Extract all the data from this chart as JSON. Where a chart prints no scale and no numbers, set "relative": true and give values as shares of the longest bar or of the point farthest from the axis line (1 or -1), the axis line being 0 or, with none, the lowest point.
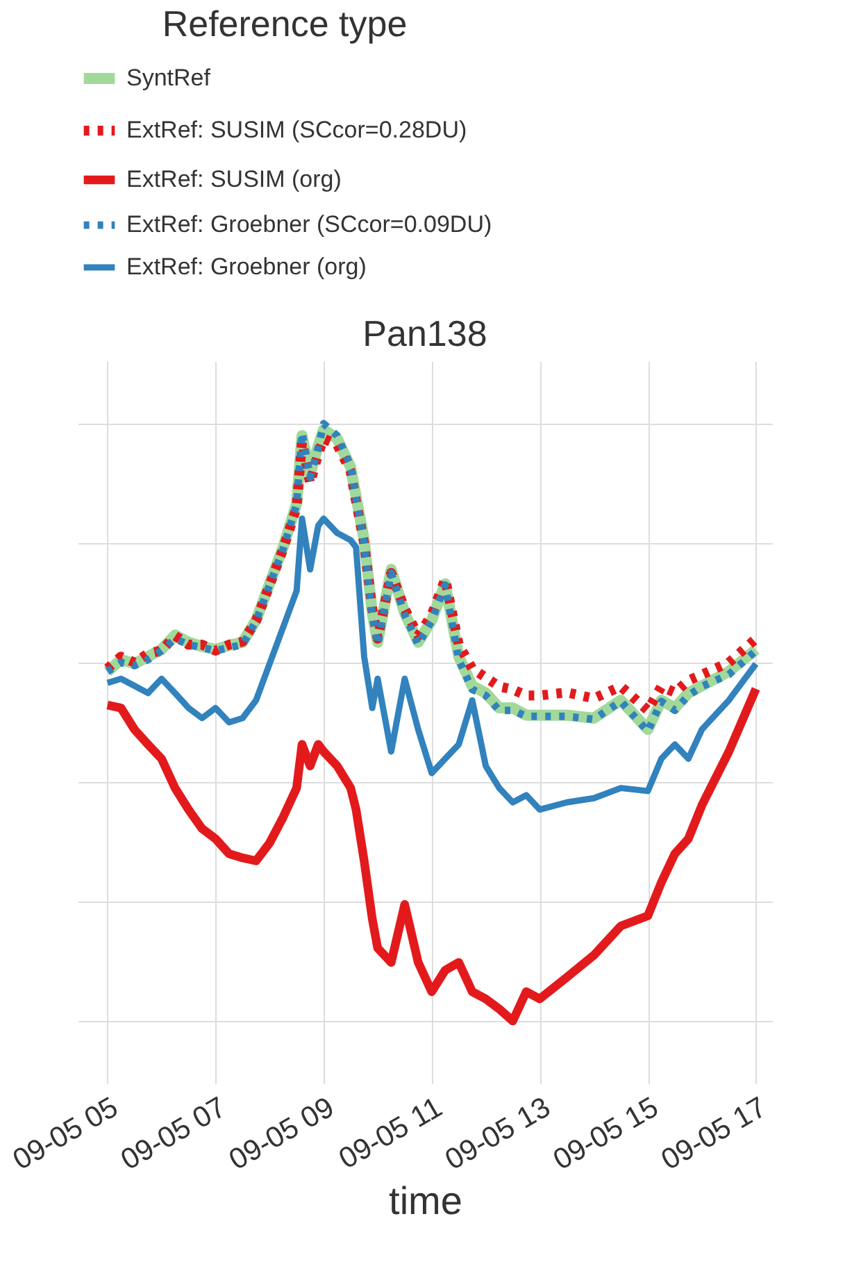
{
  "chart_data": {
    "type": "line",
    "title": "Pan138",
    "xlabel": "time",
    "legend_title": "Reference type",
    "legend": "top",
    "grid": true,
    "relative": true,
    "x": [
      "--09-05T05:00",
      "--09-05T05:15",
      "--09-05T05:30",
      "--09-05T05:45",
      "--09-05T06:00",
      "--09-05T06:15",
      "--09-05T06:30",
      "--09-05T06:45",
      "--09-05T07:00",
      "--09-05T07:15",
      "--09-05T07:30",
      "--09-05T07:45",
      "--09-05T08:00",
      "--09-05T08:15",
      "--09-05T08:30",
      "--09-05T08:36",
      "--09-05T08:45",
      "--09-05T08:54",
      "--09-05T09:00",
      "--09-05T09:15",
      "--09-05T09:30",
      "--09-05T09:36",
      "--09-05T09:45",
      "--09-05T09:54",
      "--09-05T10:00",
      "--09-05T10:15",
      "--09-05T10:30",
      "--09-05T10:45",
      "--09-05T11:00",
      "--09-05T11:15",
      "--09-05T11:30",
      "--09-05T11:45",
      "--09-05T12:00",
      "--09-05T12:15",
      "--09-05T12:30",
      "--09-05T12:45",
      "--09-05T13:00",
      "--09-05T13:30",
      "--09-05T14:00",
      "--09-05T14:30",
      "--09-05T15:00",
      "--09-05T15:15",
      "--09-05T15:30",
      "--09-05T15:45",
      "--09-05T16:00",
      "--09-05T16:30",
      "--09-05T17:00"
    ],
    "xlim": [
      "--09-05T04:27",
      "--09-05T17:18"
    ],
    "xticks": [
      {
        "value": "--09-05T05:00",
        "label": "09-05 05"
      },
      {
        "value": "--09-05T07:00",
        "label": "09-05 07"
      },
      {
        "value": "--09-05T09:00",
        "label": "09-05 09"
      },
      {
        "value": "--09-05T11:00",
        "label": "09-05 11"
      },
      {
        "value": "--09-05T13:00",
        "label": "09-05 13"
      },
      {
        "value": "--09-05T15:00",
        "label": "09-05 15"
      },
      {
        "value": "--09-05T17:00",
        "label": "09-05 17"
      }
    ],
    "series": [
      {
        "name": "SyntRef",
        "color": "#a1d99b",
        "line_style": "solid",
        "values": [
          0.585,
          0.605,
          0.598,
          0.61,
          0.622,
          0.646,
          0.634,
          0.627,
          0.622,
          0.629,
          0.634,
          0.671,
          0.732,
          0.793,
          0.866,
          0.98,
          0.915,
          0.963,
          0.99,
          0.975,
          0.927,
          0.878,
          0.805,
          0.683,
          0.634,
          0.756,
          0.683,
          0.634,
          0.671,
          0.732,
          0.61,
          0.561,
          0.549,
          0.524,
          0.524,
          0.512,
          0.512,
          0.512,
          0.507,
          0.537,
          0.488,
          0.537,
          0.524,
          0.549,
          0.561,
          0.585,
          0.622
        ]
      },
      {
        "name": "ExtRef: SUSIM (SCcor=0.28DU)",
        "color": "#e31a1c",
        "line_style": "dotted",
        "values": [
          0.59,
          0.61,
          0.6,
          0.615,
          0.62,
          0.645,
          0.63,
          0.63,
          0.62,
          0.63,
          0.635,
          0.67,
          0.73,
          0.79,
          0.86,
          0.97,
          0.9,
          0.95,
          0.975,
          0.965,
          0.92,
          0.87,
          0.8,
          0.69,
          0.64,
          0.75,
          0.69,
          0.645,
          0.68,
          0.74,
          0.63,
          0.59,
          0.575,
          0.56,
          0.555,
          0.545,
          0.545,
          0.55,
          0.54,
          0.56,
          0.52,
          0.56,
          0.55,
          0.57,
          0.58,
          0.6,
          0.64
        ]
      },
      {
        "name": "ExtRef: SUSIM (org)",
        "color": "#e31a1c",
        "line_style": "solid",
        "values": [
          0.529,
          0.524,
          0.488,
          0.463,
          0.439,
          0.39,
          0.354,
          0.322,
          0.305,
          0.28,
          0.273,
          0.268,
          0.298,
          0.341,
          0.39,
          0.463,
          0.427,
          0.463,
          0.451,
          0.427,
          0.39,
          0.354,
          0.268,
          0.171,
          0.122,
          0.098,
          0.195,
          0.098,
          0.049,
          0.085,
          0.098,
          0.049,
          0.037,
          0.02,
          0.0,
          0.049,
          0.037,
          0.073,
          0.11,
          0.159,
          0.176,
          0.232,
          0.28,
          0.305,
          0.361,
          0.451,
          0.556
        ]
      },
      {
        "name": "ExtRef: Groebner (SCcor=0.09DU)",
        "color": "#3182bd",
        "line_style": "dotted",
        "values": [
          0.585,
          0.6,
          0.595,
          0.605,
          0.62,
          0.64,
          0.63,
          0.625,
          0.62,
          0.625,
          0.63,
          0.67,
          0.73,
          0.79,
          0.865,
          0.985,
          0.91,
          0.96,
          1.0,
          0.98,
          0.93,
          0.875,
          0.8,
          0.68,
          0.63,
          0.75,
          0.68,
          0.63,
          0.67,
          0.73,
          0.605,
          0.555,
          0.545,
          0.52,
          0.52,
          0.51,
          0.51,
          0.51,
          0.505,
          0.535,
          0.485,
          0.535,
          0.52,
          0.545,
          0.56,
          0.58,
          0.62
        ]
      },
      {
        "name": "ExtRef: Groebner (org)",
        "color": "#3182bd",
        "line_style": "solid",
        "values": [
          0.566,
          0.573,
          0.561,
          0.549,
          0.573,
          0.549,
          0.524,
          0.507,
          0.524,
          0.5,
          0.507,
          0.537,
          0.598,
          0.659,
          0.72,
          0.841,
          0.756,
          0.829,
          0.841,
          0.817,
          0.805,
          0.793,
          0.61,
          0.524,
          0.573,
          0.451,
          0.573,
          0.488,
          0.415,
          0.439,
          0.463,
          0.537,
          0.427,
          0.39,
          0.366,
          0.378,
          0.354,
          0.366,
          0.373,
          0.39,
          0.385,
          0.439,
          0.463,
          0.439,
          0.488,
          0.537,
          0.598
        ]
      }
    ]
  }
}
